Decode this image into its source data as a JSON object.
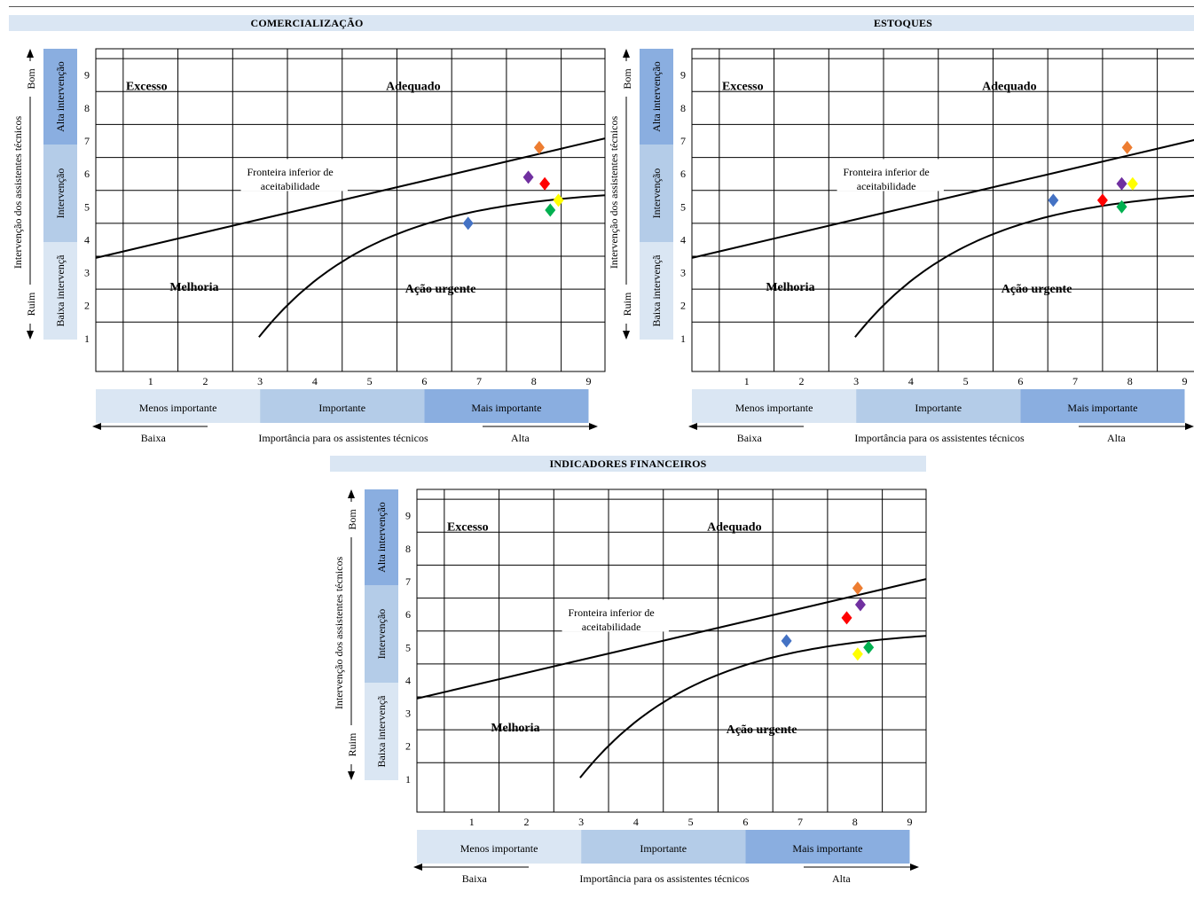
{
  "panels": [
    {
      "title": "COMERCIALIZAÇÃO",
      "points": [
        {
          "color": "#4472c4",
          "x": 6.8,
          "y": 4.5
        },
        {
          "color": "#ed7d31",
          "x": 8.1,
          "y": 6.8
        },
        {
          "color": "#7030a0",
          "x": 7.9,
          "y": 5.9
        },
        {
          "color": "#ff0000",
          "x": 8.2,
          "y": 5.7
        },
        {
          "color": "#00b050",
          "x": 8.3,
          "y": 4.9
        },
        {
          "color": "#ffff00",
          "x": 8.45,
          "y": 5.2
        }
      ]
    },
    {
      "title": "ESTOQUES",
      "points": [
        {
          "color": "#4472c4",
          "x": 6.6,
          "y": 5.2
        },
        {
          "color": "#ff0000",
          "x": 7.5,
          "y": 5.2
        },
        {
          "color": "#00b050",
          "x": 7.85,
          "y": 5.0
        },
        {
          "color": "#7030a0",
          "x": 7.85,
          "y": 5.7
        },
        {
          "color": "#ffff00",
          "x": 8.05,
          "y": 5.7
        },
        {
          "color": "#ed7d31",
          "x": 7.95,
          "y": 6.8
        }
      ]
    },
    {
      "title": "INDICADORES FINANCEIROS",
      "points": [
        {
          "color": "#4472c4",
          "x": 6.75,
          "y": 5.2
        },
        {
          "color": "#ed7d31",
          "x": 8.05,
          "y": 6.8
        },
        {
          "color": "#7030a0",
          "x": 8.1,
          "y": 6.3
        },
        {
          "color": "#ff0000",
          "x": 7.85,
          "y": 5.9
        },
        {
          "color": "#00b050",
          "x": 8.25,
          "y": 5.0
        },
        {
          "color": "#ffff00",
          "x": 8.05,
          "y": 4.8
        }
      ]
    }
  ],
  "chart_data": {
    "type": "scatter",
    "x_ticks": [
      "1",
      "2",
      "3",
      "4",
      "5",
      "6",
      "7",
      "8",
      "9"
    ],
    "y_ticks": [
      "1",
      "2",
      "3",
      "4",
      "5",
      "6",
      "7",
      "8",
      "9"
    ],
    "ylabel": "Intervenção dos assistentes técnicos",
    "xlabel": "Importância para os assistentes técnicos",
    "x_low": "Baixa",
    "x_high": "Alta",
    "y_good": "Bom",
    "y_bad": "Ruim",
    "importance_bands": [
      "Menos importante",
      "Importante",
      "Mais importante"
    ],
    "intervention_bands": [
      "Alta intervenção",
      "Intervenção",
      "Baixa intervençã"
    ],
    "regions": {
      "excess": "Excesso",
      "adequate": "Adequado",
      "improvement": "Melhoria",
      "urgent": "Ação urgente"
    },
    "boundary_label_1": "Fronteira inferior de",
    "boundary_label_2": "aceitabilidade"
  }
}
